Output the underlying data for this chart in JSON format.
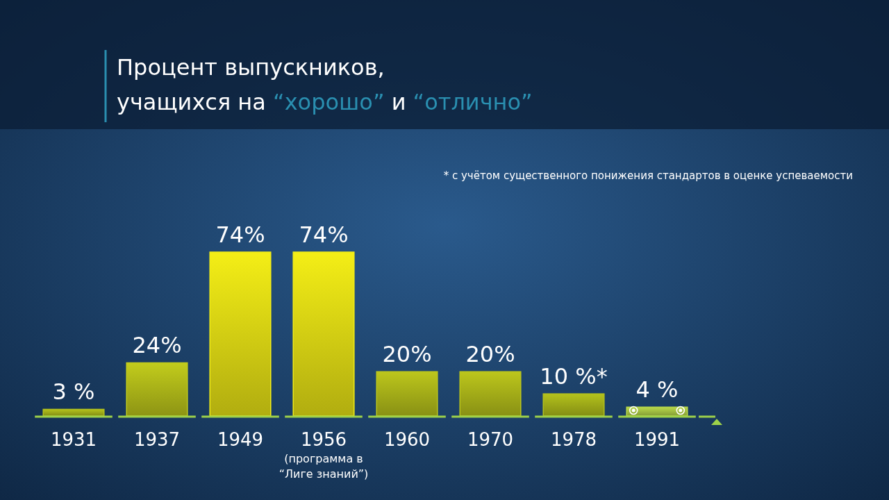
{
  "chart_data": {
    "type": "bar",
    "title": "Процент выпускников,\nучащихся на “хорошо” и “отлично”",
    "categories": [
      "1931",
      "1937",
      "1949",
      "1956\n(программа в\n“Лиге знаний”)",
      "1960",
      "1970",
      "1978",
      "1991"
    ],
    "values": [
      3,
      24,
      74,
      74,
      20,
      20,
      10,
      4
    ],
    "colors": [
      "#b4c21c",
      "#c2cc1c",
      "#f4ee16",
      "#f4ee16",
      "#bcc61c",
      "#bcc61c",
      "#b4c21c",
      "#b8d84a"
    ],
    "value_labels": [
      "3 %",
      "24%",
      "74%",
      "74%",
      "20%",
      "20%",
      "10 %*",
      "4 %"
    ],
    "tick_labels": "x",
    "annotations": [
      "* с учётом существенного понижения стандартов в оценке успеваемости"
    ]
  }
}
